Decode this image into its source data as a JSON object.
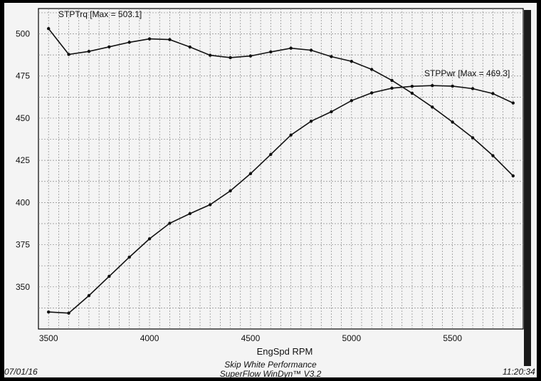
{
  "chart_data": {
    "type": "line",
    "title": "",
    "xlabel": "EngSpd RPM",
    "ylabel": "",
    "xlim": [
      3450,
      5850
    ],
    "ylim": [
      325,
      515
    ],
    "x_ticks": [
      3500,
      4000,
      4500,
      5000,
      5500
    ],
    "y_ticks": [
      350,
      375,
      400,
      425,
      450,
      475,
      500
    ],
    "grid": true,
    "legend": "none",
    "x": [
      3500,
      3600,
      3700,
      3800,
      3900,
      4000,
      4100,
      4200,
      4300,
      4400,
      4500,
      4600,
      4700,
      4800,
      4900,
      5000,
      5100,
      5200,
      5300,
      5400,
      5500,
      5600,
      5700,
      5800
    ],
    "series": [
      {
        "name": "STPTrq [Max = 503.1]",
        "color": "#111111",
        "values": [
          503.1,
          487.8,
          489.6,
          492.3,
          495.0,
          497.0,
          496.6,
          492.2,
          487.3,
          485.9,
          486.9,
          489.3,
          491.5,
          490.3,
          486.5,
          483.7,
          478.9,
          472.4,
          464.8,
          456.6,
          447.7,
          438.4,
          427.8,
          415.8
        ]
      },
      {
        "name": "STPPwr [Max = 469.3]",
        "color": "#111111",
        "values": [
          335.1,
          334.4,
          344.8,
          356.2,
          367.6,
          378.5,
          387.7,
          393.4,
          398.7,
          406.9,
          417.1,
          428.5,
          440.0,
          448.2,
          453.8,
          460.4,
          465.0,
          467.8,
          468.9,
          469.3,
          469.0,
          467.5,
          464.6,
          459.0
        ]
      }
    ]
  },
  "footer": {
    "date": "07/01/16",
    "company": "Skip White Performance",
    "software": "SuperFlow WinDyn™ V3.2",
    "time": "11:20:34"
  }
}
